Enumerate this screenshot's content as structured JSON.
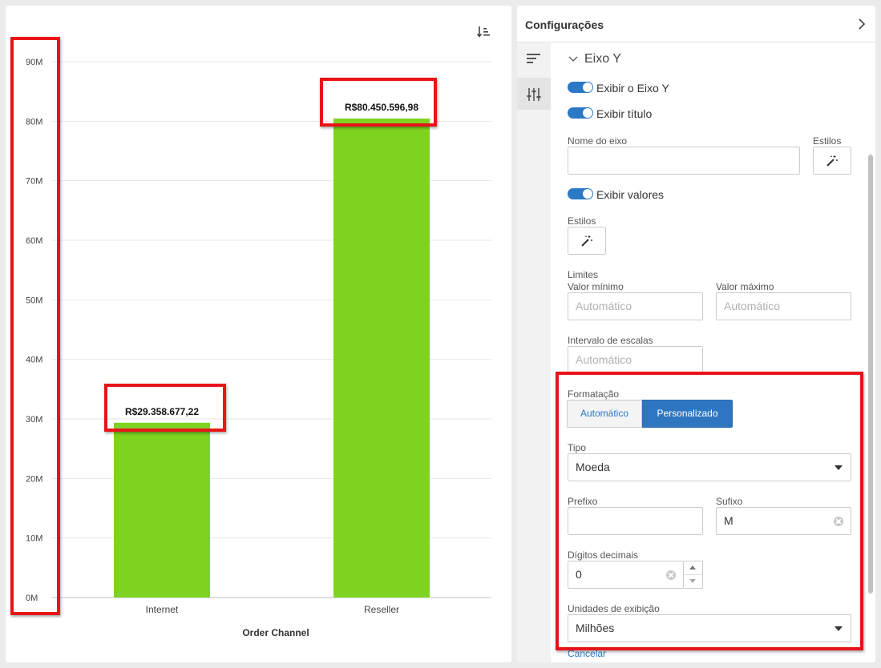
{
  "chart_data": {
    "type": "bar",
    "categories": [
      "Internet",
      "Reseller"
    ],
    "values": [
      29358677.22,
      80450596.98
    ],
    "data_labels": [
      "R$29.358.677,22",
      "R$80.450.596,98"
    ],
    "xlabel": "Order Channel",
    "ylabel": "",
    "ylim": [
      0,
      90000000
    ],
    "yticks": [
      0,
      10000000,
      20000000,
      30000000,
      40000000,
      50000000,
      60000000,
      70000000,
      80000000,
      90000000
    ],
    "ytick_labels": [
      "0M",
      "10M",
      "20M",
      "30M",
      "40M",
      "50M",
      "60M",
      "70M",
      "80M",
      "90M"
    ],
    "grid": true,
    "bar_color": "#7ed321"
  },
  "chart_toolbar": {
    "sort_icon": "sort-descending-icon"
  },
  "settings": {
    "title": "Configurações",
    "section_title": "Eixo Y",
    "toggles": {
      "show_axis": "Exibir o Eixo Y",
      "show_title": "Exibir título",
      "show_values": "Exibir valores"
    },
    "axis_name_label": "Nome do eixo",
    "axis_name_value": "",
    "styles_label": "Estilos",
    "limits_label": "Limites",
    "min_label": "Valor mínimo",
    "max_label": "Valor máximo",
    "auto_placeholder": "Automático",
    "interval_label": "Intervalo de escalas",
    "formatting_label": "Formatação",
    "format_auto": "Automático",
    "format_custom": "Personalizado",
    "type_label": "Tipo",
    "type_value": "Moeda",
    "prefix_label": "Prefixo",
    "prefix_value": "",
    "suffix_label": "Sufixo",
    "suffix_value": "M",
    "decimals_label": "Dígitos decimais",
    "decimals_value": "0",
    "units_label": "Unidades de exibição",
    "units_value": "Milhões",
    "cancel_label": "Cancelar"
  },
  "colors": {
    "accent": "#2b78c5",
    "annotation": "#e8141a",
    "bar": "#7ed321"
  }
}
